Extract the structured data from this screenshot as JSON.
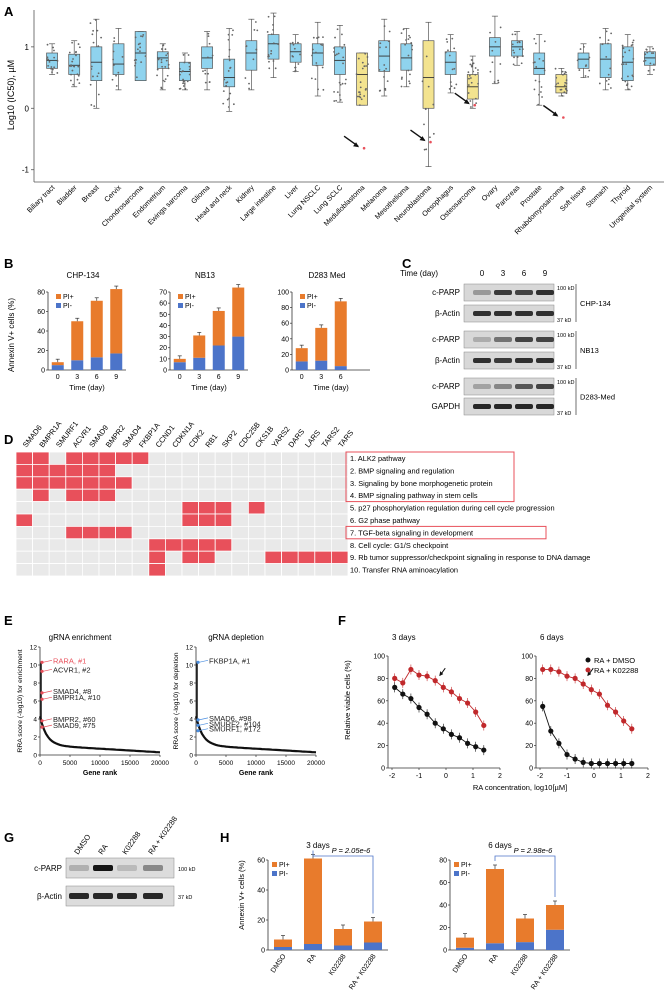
{
  "colors": {
    "orange": "#E87B2C",
    "blue": "#4C74C9",
    "box_blue": "#8FD3EE",
    "box_yellow": "#F3E38F",
    "red": "#E8505B",
    "grid": "#d9d9d9"
  },
  "panels": {
    "A": {
      "label": "A",
      "ylabel": "Log10 (IC50), µM",
      "yticks": [
        "1",
        "0",
        "-1"
      ],
      "ylim": [
        -1.2,
        1.6
      ],
      "categories": [
        "Biliary tract",
        "Bladder",
        "Breast",
        "Cervix",
        "Chondrosarcoma",
        "Endometrium",
        "Ewings sarcoma",
        "Glioma",
        "Head and neck",
        "Kidney",
        "Large intestine",
        "Liver",
        "Lung NSCLC",
        "Lung SCLC",
        "Medulloblastoma",
        "Melanoma",
        "Mesothelioma",
        "Neuroblastoma",
        "Oesophagus",
        "Osteosarcoma",
        "Ovary",
        "Pancreas",
        "Prostate",
        "Rhabdomyosarcoma",
        "Soft tissue",
        "Stomach",
        "Thyroid",
        "Urogenital system"
      ],
      "boxes": [
        {
          "q1": 0.65,
          "med": 0.78,
          "q3": 0.9,
          "lo": 0.55,
          "hi": 1.05,
          "c": "b"
        },
        {
          "q1": 0.55,
          "med": 0.7,
          "q3": 0.88,
          "lo": 0.35,
          "hi": 1.1,
          "c": "b"
        },
        {
          "q1": 0.45,
          "med": 0.75,
          "q3": 1.0,
          "lo": 0.0,
          "hi": 1.45,
          "c": "b"
        },
        {
          "q1": 0.55,
          "med": 0.72,
          "q3": 1.05,
          "lo": 0.3,
          "hi": 1.3,
          "c": "b"
        },
        {
          "q1": 0.45,
          "med": 0.9,
          "q3": 1.25,
          "lo": 0.45,
          "hi": 1.25,
          "c": "b"
        },
        {
          "q1": 0.65,
          "med": 0.82,
          "q3": 0.92,
          "lo": 0.3,
          "hi": 1.05,
          "c": "b"
        },
        {
          "q1": 0.45,
          "med": 0.6,
          "q3": 0.75,
          "lo": 0.3,
          "hi": 0.9,
          "c": "b"
        },
        {
          "q1": 0.65,
          "med": 0.82,
          "q3": 1.0,
          "lo": 0.3,
          "hi": 1.25,
          "c": "b"
        },
        {
          "q1": 0.35,
          "med": 0.5,
          "q3": 0.8,
          "lo": -0.05,
          "hi": 1.3,
          "c": "b"
        },
        {
          "q1": 0.62,
          "med": 0.9,
          "q3": 1.1,
          "lo": 0.3,
          "hi": 1.45,
          "c": "b"
        },
        {
          "q1": 0.8,
          "med": 1.05,
          "q3": 1.2,
          "lo": 0.5,
          "hi": 1.55,
          "c": "b"
        },
        {
          "q1": 0.75,
          "med": 0.92,
          "q3": 1.05,
          "lo": 0.6,
          "hi": 1.2,
          "c": "b"
        },
        {
          "q1": 0.7,
          "med": 0.9,
          "q3": 1.05,
          "lo": 0.2,
          "hi": 1.4,
          "c": "b"
        },
        {
          "q1": 0.55,
          "med": 0.78,
          "q3": 1.0,
          "lo": 0.1,
          "hi": 1.35,
          "c": "b"
        },
        {
          "q1": 0.05,
          "med": 0.55,
          "q3": 0.9,
          "lo": 0.05,
          "hi": 0.9,
          "c": "y"
        },
        {
          "q1": 0.6,
          "med": 0.85,
          "q3": 1.1,
          "lo": 0.2,
          "hi": 1.45,
          "c": "b"
        },
        {
          "q1": 0.62,
          "med": 0.82,
          "q3": 1.05,
          "lo": 0.35,
          "hi": 1.3,
          "c": "b"
        },
        {
          "q1": 0.0,
          "med": 0.5,
          "q3": 1.1,
          "lo": -0.95,
          "hi": 1.4,
          "c": "y"
        },
        {
          "q1": 0.55,
          "med": 0.75,
          "q3": 0.92,
          "lo": 0.25,
          "hi": 1.2,
          "c": "b"
        },
        {
          "q1": 0.15,
          "med": 0.35,
          "q3": 0.55,
          "lo": 0.0,
          "hi": 0.85,
          "c": "y"
        },
        {
          "q1": 0.85,
          "med": 1.0,
          "q3": 1.15,
          "lo": 0.4,
          "hi": 1.5,
          "c": "b"
        },
        {
          "q1": 0.85,
          "med": 1.0,
          "q3": 1.1,
          "lo": 0.7,
          "hi": 1.25,
          "c": "b"
        },
        {
          "q1": 0.55,
          "med": 0.65,
          "q3": 0.9,
          "lo": 0.05,
          "hi": 1.2,
          "c": "b"
        },
        {
          "q1": 0.25,
          "med": 0.35,
          "q3": 0.55,
          "lo": 0.2,
          "hi": 0.65,
          "c": "y"
        },
        {
          "q1": 0.65,
          "med": 0.8,
          "q3": 0.9,
          "lo": 0.5,
          "hi": 1.05,
          "c": "b"
        },
        {
          "q1": 0.5,
          "med": 0.8,
          "q3": 1.05,
          "lo": 0.3,
          "hi": 1.3,
          "c": "b"
        },
        {
          "q1": 0.45,
          "med": 0.75,
          "q3": 1.0,
          "lo": 0.3,
          "hi": 1.2,
          "c": "b"
        },
        {
          "q1": 0.7,
          "med": 0.82,
          "q3": 0.92,
          "lo": 0.55,
          "hi": 1.0,
          "c": "b"
        }
      ],
      "red_outliers": [
        {
          "i": 14,
          "v": -0.65
        },
        {
          "i": 17,
          "v": -0.55
        },
        {
          "i": 19,
          "v": 0.05
        },
        {
          "i": 23,
          "v": -0.15
        }
      ]
    },
    "B": {
      "label": "B",
      "ylabel": "Annexin V+ cells (%)",
      "xlabel": "Time (day)",
      "legend": [
        "PI+",
        "PI-"
      ],
      "charts": [
        {
          "title": "CHP-134",
          "x": [
            "0",
            "3",
            "6",
            "9"
          ],
          "pi_neg": [
            5,
            10,
            13,
            17
          ],
          "pi_pos": [
            3,
            40,
            58,
            66
          ],
          "ymax": 80,
          "yticks": [
            "0",
            "20",
            "40",
            "60",
            "80"
          ]
        },
        {
          "title": "NB13",
          "x": [
            "0",
            "3",
            "6",
            "9"
          ],
          "pi_neg": [
            7,
            11,
            22,
            30
          ],
          "pi_pos": [
            3,
            20,
            31,
            44
          ],
          "ymax": 70,
          "yticks": [
            "0",
            "10",
            "20",
            "30",
            "40",
            "50",
            "60",
            "70"
          ]
        },
        {
          "title": "D283 Med",
          "x": [
            "0",
            "3",
            "6"
          ],
          "pi_neg": [
            11,
            12,
            5
          ],
          "pi_pos": [
            17,
            42,
            83
          ],
          "ymax": 100,
          "yticks": [
            "0",
            "20",
            "40",
            "60",
            "80",
            "100"
          ]
        }
      ]
    },
    "C": {
      "label": "C",
      "time_label": "Time (day)",
      "days": [
        "0",
        "3",
        "6",
        "9"
      ],
      "rows": [
        "c-PARP",
        "β-Actin",
        "c-PARP",
        "β-Actin",
        "c-PARP",
        "GAPDH"
      ],
      "cells": [
        "CHP-134",
        "NB13",
        "D283-Med"
      ],
      "mw": [
        "100 kD",
        "37 kD",
        "100 kD",
        "37 kD",
        "100 kD",
        "37 kD"
      ]
    },
    "D": {
      "label": "D",
      "genes": [
        "SMAD6",
        "BMPR1A",
        "SMURF1",
        "ACVR1",
        "SMAD9",
        "BMPR2",
        "SMAD4",
        "FKBP1A",
        "CCND1",
        "CDKN1A",
        "CDK2",
        "RB1",
        "SKP2",
        "CDC25B",
        "CKS1B",
        "YARS2",
        "DARS",
        "LARS",
        "TARS2",
        "TARS"
      ],
      "pathways": [
        "1. ALK2 pathway",
        "2. BMP signaling and regulation",
        "3. Signaling by bone morphogenetic protein",
        "4. BMP signaling pathway in stem cells",
        "5. p27 phosphorylation regulation during cell cycle progression",
        "6. G2 phase pathway",
        "7. TGF-beta signaling in development",
        "8. Cell cycle: G1/S checkpoint",
        "9. Rb tumor suppressor/checkpoint signaling in response to DNA damage",
        "10. Transfer RNA aminoacylation"
      ],
      "matrix": [
        [
          1,
          1,
          0,
          1,
          1,
          1,
          1,
          1,
          0,
          0,
          0,
          0,
          0,
          0,
          0,
          0,
          0,
          0,
          0,
          0
        ],
        [
          1,
          1,
          1,
          1,
          1,
          1,
          0,
          0,
          0,
          0,
          0,
          0,
          0,
          0,
          0,
          0,
          0,
          0,
          0,
          0
        ],
        [
          1,
          1,
          1,
          1,
          1,
          1,
          1,
          0,
          0,
          0,
          0,
          0,
          0,
          0,
          0,
          0,
          0,
          0,
          0,
          0
        ],
        [
          0,
          1,
          0,
          1,
          1,
          1,
          0,
          0,
          0,
          0,
          0,
          0,
          0,
          0,
          0,
          0,
          0,
          0,
          0,
          0
        ],
        [
          0,
          0,
          0,
          0,
          0,
          0,
          0,
          0,
          0,
          0,
          1,
          1,
          1,
          0,
          1,
          0,
          0,
          0,
          0,
          0
        ],
        [
          1,
          0,
          0,
          0,
          0,
          0,
          0,
          0,
          0,
          0,
          1,
          1,
          1,
          0,
          0,
          0,
          0,
          0,
          0,
          0
        ],
        [
          0,
          0,
          0,
          1,
          1,
          1,
          1,
          0,
          0,
          0,
          0,
          0,
          0,
          0,
          0,
          0,
          0,
          0,
          0,
          0
        ],
        [
          0,
          0,
          0,
          0,
          0,
          0,
          0,
          0,
          1,
          1,
          1,
          1,
          1,
          0,
          0,
          0,
          0,
          0,
          0,
          0
        ],
        [
          0,
          0,
          0,
          0,
          0,
          0,
          0,
          0,
          1,
          0,
          1,
          1,
          0,
          0,
          0,
          1,
          1,
          1,
          1,
          1
        ],
        [
          0,
          0,
          0,
          0,
          0,
          0,
          0,
          0,
          1,
          0,
          0,
          0,
          0,
          0,
          0,
          0,
          0,
          0,
          0,
          0
        ]
      ],
      "boxed_rows": [
        [
          0,
          3
        ],
        [
          6,
          6
        ]
      ]
    },
    "E": {
      "label": "E",
      "xlabel": "Gene rank",
      "xticks": [
        "0",
        "5000",
        "10000",
        "15000",
        "20000"
      ],
      "enrich": {
        "title": "gRNA enrichment",
        "ylabel": "RRA score (-log10) for enrichment",
        "yticks": [
          "0",
          "2",
          "4",
          "6",
          "8",
          "10",
          "12"
        ],
        "labels": [
          {
            "t": "RARA, #1",
            "y": 10.3,
            "red": true
          },
          {
            "t": "ACVR1, #2",
            "y": 9.3,
            "red": false
          },
          {
            "t": "SMAD4, #8",
            "y": 6.9,
            "red": false
          },
          {
            "t": "BMPR1A, #10",
            "y": 6.2,
            "red": false
          },
          {
            "t": "BMPR2, #60",
            "y": 3.8,
            "red": false
          },
          {
            "t": "SMAD9, #75",
            "y": 3.1,
            "red": false
          }
        ]
      },
      "deplete": {
        "title": "gRNA depletion",
        "ylabel": "RRA score (-log10) for depletion",
        "yticks": [
          "0",
          "2",
          "4",
          "6",
          "8",
          "10",
          "12"
        ],
        "labels": [
          {
            "t": "FKBP1A, #1",
            "y": 10.3
          },
          {
            "t": "SMAD6, #98",
            "y": 3.9
          },
          {
            "t": "SMURF2, #104",
            "y": 3.3
          },
          {
            "t": "SMURF1, #172",
            "y": 2.7
          }
        ]
      }
    },
    "F": {
      "label": "F",
      "ylabel": "Relative viable cells (%)",
      "xlabel": "RA concentration, log10[µM]",
      "xticks": [
        "-2",
        "-1",
        "0",
        "1",
        "2"
      ],
      "yticks": [
        "0",
        "20",
        "40",
        "60",
        "80",
        "100"
      ],
      "legend": [
        "RA + DMSO",
        "RA + K02288"
      ],
      "x": [
        -1.9,
        -1.6,
        -1.3,
        -1.0,
        -0.7,
        -0.4,
        -0.1,
        0.2,
        0.5,
        0.8,
        1.1,
        1.4
      ],
      "d3": {
        "title": "3 days",
        "dmso": [
          72,
          66,
          62,
          54,
          48,
          40,
          35,
          30,
          27,
          22,
          19,
          16
        ],
        "k0": [
          80,
          76,
          88,
          83,
          82,
          78,
          72,
          68,
          62,
          58,
          50,
          38
        ]
      },
      "d6": {
        "title": "6 days",
        "dmso": [
          55,
          33,
          22,
          12,
          8,
          5,
          4,
          4,
          4,
          4,
          4,
          4
        ],
        "k0": [
          88,
          88,
          86,
          82,
          80,
          75,
          70,
          66,
          56,
          50,
          42,
          35
        ]
      }
    },
    "G": {
      "label": "G",
      "lanes": [
        "DMSO",
        "RA",
        "K02288",
        "RA + K02288"
      ],
      "rows": [
        "c-PARP",
        "β-Actin"
      ],
      "mw": [
        "100 kD",
        "37 kD"
      ]
    },
    "H": {
      "label": "H",
      "ylabel": "Annexin V+ cells (%)",
      "legend": [
        "PI+",
        "PI-"
      ],
      "x": [
        "DMSO",
        "RA",
        "K02288",
        "RA + K02288"
      ],
      "charts": [
        {
          "title": "3 days",
          "p": "P = 2.05e-6",
          "pi_neg": [
            2,
            4,
            3,
            5
          ],
          "pi_pos": [
            5,
            57,
            11,
            14
          ],
          "ymax": 60,
          "yticks": [
            "0",
            "20",
            "40",
            "60"
          ]
        },
        {
          "title": "6 days",
          "p": "P = 2.98e-6",
          "pi_neg": [
            2,
            6,
            7,
            18
          ],
          "pi_pos": [
            9,
            66,
            21,
            22
          ],
          "ymax": 80,
          "yticks": [
            "0",
            "20",
            "40",
            "60",
            "80"
          ]
        }
      ]
    }
  }
}
